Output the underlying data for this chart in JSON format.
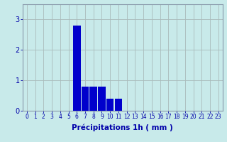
{
  "categories": [
    0,
    1,
    2,
    3,
    4,
    5,
    6,
    7,
    8,
    9,
    10,
    11,
    12,
    13,
    14,
    15,
    16,
    17,
    18,
    19,
    20,
    21,
    22,
    23
  ],
  "values": [
    0,
    0,
    0,
    0,
    0,
    0,
    2.8,
    0.8,
    0.8,
    0.8,
    0.4,
    0.4,
    0,
    0,
    0,
    0,
    0,
    0,
    0,
    0,
    0,
    0,
    0,
    0
  ],
  "bar_color": "#0000cc",
  "bg_color": "#c8eaea",
  "grid_color": "#aabbbb",
  "xlabel": "Précipitations 1h ( mm )",
  "xlabel_fontsize": 7.5,
  "ylabel_ticks": [
    0,
    1,
    2,
    3
  ],
  "ylim": [
    0,
    3.5
  ],
  "xlim": [
    -0.5,
    23.5
  ],
  "xtick_fontsize": 5.5,
  "ytick_fontsize": 7,
  "tick_color": "#0000aa",
  "spine_color": "#8899aa"
}
